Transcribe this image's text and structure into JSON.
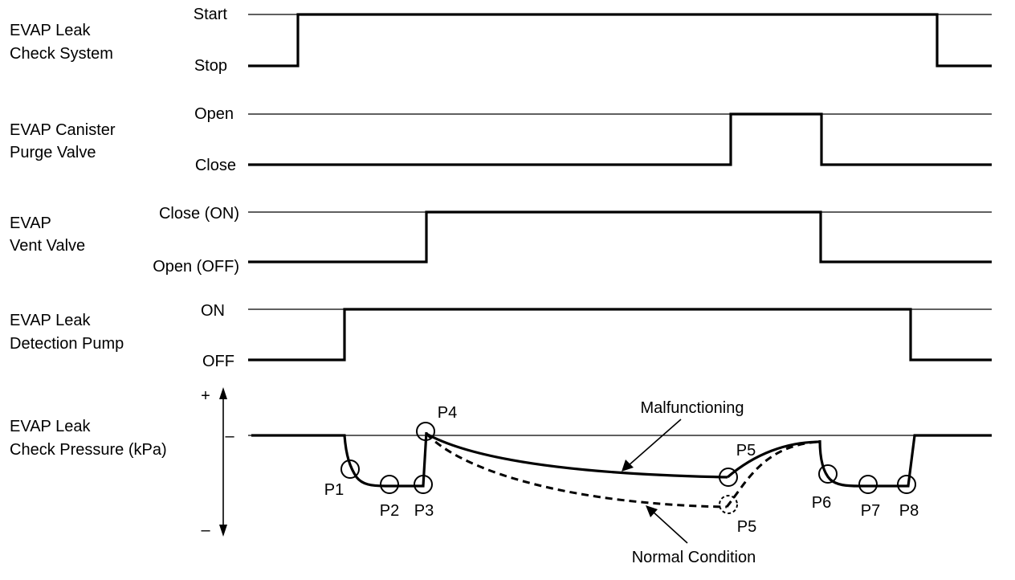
{
  "rows": [
    {
      "name_line1": "EVAP Leak",
      "name_line2": "Check System",
      "high": "Start",
      "low": "Stop"
    },
    {
      "name_line1": "EVAP Canister",
      "name_line2": "Purge Valve",
      "high": "Open",
      "low": "Close"
    },
    {
      "name_line1": "EVAP",
      "name_line2": "Vent Valve",
      "high": "Close (ON)",
      "low": "Open (OFF)"
    },
    {
      "name_line1": "EVAP Leak",
      "name_line2": "Detection Pump",
      "high": "ON",
      "low": "OFF"
    }
  ],
  "pressure": {
    "name_line1": "EVAP Leak",
    "name_line2": "Check Pressure (kPa)",
    "plus": "+",
    "minus": "–",
    "tick": "–"
  },
  "points": {
    "p1": "P1",
    "p2": "P2",
    "p3": "P3",
    "p4": "P4",
    "p5_malfunction": "P5",
    "p5_normal": "P5",
    "p6": "P6",
    "p7": "P7",
    "p8": "P8"
  },
  "annotations": {
    "malfunctioning": "Malfunctioning",
    "normal": "Normal Condition"
  }
}
